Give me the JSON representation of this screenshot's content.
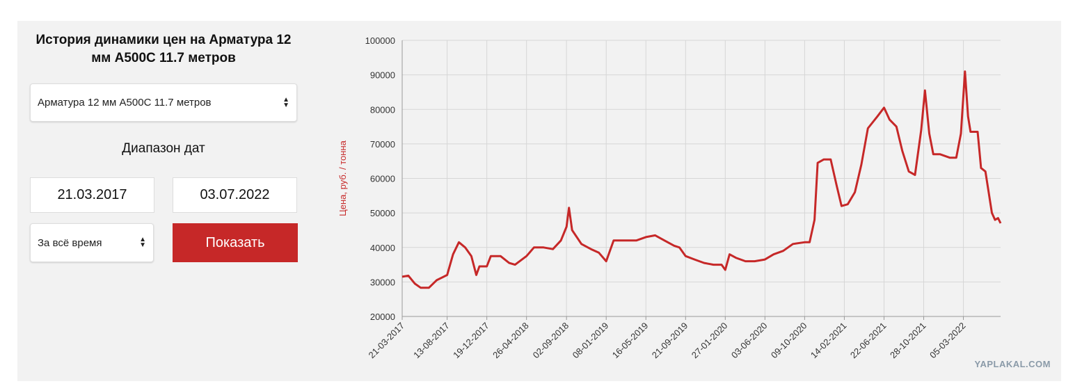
{
  "panel": {
    "title": "История динамики цен на Арматура 12 мм А500С 11.7 метров",
    "product_select": "Арматура 12 мм А500С 11.7 метров",
    "range_label": "Диапазон дат",
    "date_from": "21.03.2017",
    "date_to": "03.07.2022",
    "period_select": "За всё время",
    "button": "Показать"
  },
  "watermark": "YAPLAKAL.COM",
  "chart_data": {
    "type": "line",
    "y_label": "Цена, руб. / тонна",
    "color": "#c62828",
    "grid": true,
    "xlim": [
      "2017-03-21",
      "2022-07-03"
    ],
    "ylim": [
      20000,
      100000
    ],
    "yticks": [
      20000,
      30000,
      40000,
      50000,
      60000,
      70000,
      80000,
      90000,
      100000
    ],
    "xticks": [
      {
        "value": "2017-03-21",
        "label": "21-03-2017"
      },
      {
        "value": "2017-08-13",
        "label": "13-08-2017"
      },
      {
        "value": "2017-12-19",
        "label": "19-12-2017"
      },
      {
        "value": "2018-04-26",
        "label": "26-04-2018"
      },
      {
        "value": "2018-09-02",
        "label": "02-09-2018"
      },
      {
        "value": "2019-01-08",
        "label": "08-01-2019"
      },
      {
        "value": "2019-05-16",
        "label": "16-05-2019"
      },
      {
        "value": "2019-09-21",
        "label": "21-09-2019"
      },
      {
        "value": "2020-01-27",
        "label": "27-01-2020"
      },
      {
        "value": "2020-06-03",
        "label": "03-06-2020"
      },
      {
        "value": "2020-10-09",
        "label": "09-10-2020"
      },
      {
        "value": "2021-02-14",
        "label": "14-02-2021"
      },
      {
        "value": "2021-06-22",
        "label": "22-06-2021"
      },
      {
        "value": "2021-10-28",
        "label": "28-10-2021"
      },
      {
        "value": "2022-03-05",
        "label": "05-03-2022"
      }
    ],
    "x": [
      "2017-03-21",
      "2017-04-10",
      "2017-05-01",
      "2017-05-20",
      "2017-06-15",
      "2017-07-10",
      "2017-08-13",
      "2017-09-01",
      "2017-09-20",
      "2017-10-10",
      "2017-10-30",
      "2017-11-15",
      "2017-11-25",
      "2017-12-19",
      "2018-01-01",
      "2018-02-01",
      "2018-03-01",
      "2018-03-20",
      "2018-04-26",
      "2018-05-20",
      "2018-06-20",
      "2018-07-20",
      "2018-08-15",
      "2018-09-02",
      "2018-09-10",
      "2018-09-20",
      "2018-10-20",
      "2018-11-20",
      "2018-12-15",
      "2019-01-08",
      "2019-02-01",
      "2019-03-15",
      "2019-04-15",
      "2019-05-16",
      "2019-06-15",
      "2019-07-15",
      "2019-08-15",
      "2019-09-01",
      "2019-09-21",
      "2019-10-20",
      "2019-11-20",
      "2019-12-20",
      "2020-01-15",
      "2020-01-27",
      "2020-02-10",
      "2020-03-01",
      "2020-04-01",
      "2020-05-01",
      "2020-06-03",
      "2020-07-01",
      "2020-08-01",
      "2020-09-01",
      "2020-10-09",
      "2020-10-25",
      "2020-11-10",
      "2020-11-20",
      "2020-12-10",
      "2021-01-01",
      "2021-01-20",
      "2021-02-05",
      "2021-02-25",
      "2021-03-20",
      "2021-04-10",
      "2021-05-01",
      "2021-06-01",
      "2021-06-22",
      "2021-07-10",
      "2021-08-01",
      "2021-08-20",
      "2021-09-10",
      "2021-09-30",
      "2021-10-20",
      "2021-11-01",
      "2021-11-15",
      "2021-11-28",
      "2021-12-20",
      "2022-01-20",
      "2022-02-10",
      "2022-02-25",
      "2022-03-10",
      "2022-03-20",
      "2022-03-28",
      "2022-04-20",
      "2022-05-01",
      "2022-05-15",
      "2022-06-05",
      "2022-06-15",
      "2022-06-25",
      "2022-07-03"
    ],
    "values": [
      31500,
      31800,
      29500,
      28300,
      28300,
      30500,
      32000,
      38000,
      41500,
      40000,
      37500,
      32000,
      34500,
      34500,
      37500,
      37500,
      35500,
      35000,
      37500,
      40000,
      40000,
      39500,
      42000,
      46000,
      51500,
      45000,
      41000,
      39500,
      38500,
      36000,
      42000,
      42000,
      42000,
      43000,
      43500,
      42000,
      40500,
      40000,
      37500,
      36500,
      35500,
      35000,
      35000,
      33500,
      38000,
      37000,
      36000,
      36000,
      36500,
      38000,
      39000,
      41000,
      41500,
      41500,
      48000,
      64500,
      65500,
      65500,
      58000,
      52000,
      52500,
      56000,
      64000,
      74500,
      78000,
      80500,
      77000,
      75000,
      68000,
      62000,
      61000,
      74000,
      85500,
      73000,
      67000,
      67000,
      66000,
      66000,
      73000,
      91000,
      78000,
      73500,
      73500,
      63000,
      62000,
      50000,
      48000,
      48500,
      47000
    ]
  }
}
